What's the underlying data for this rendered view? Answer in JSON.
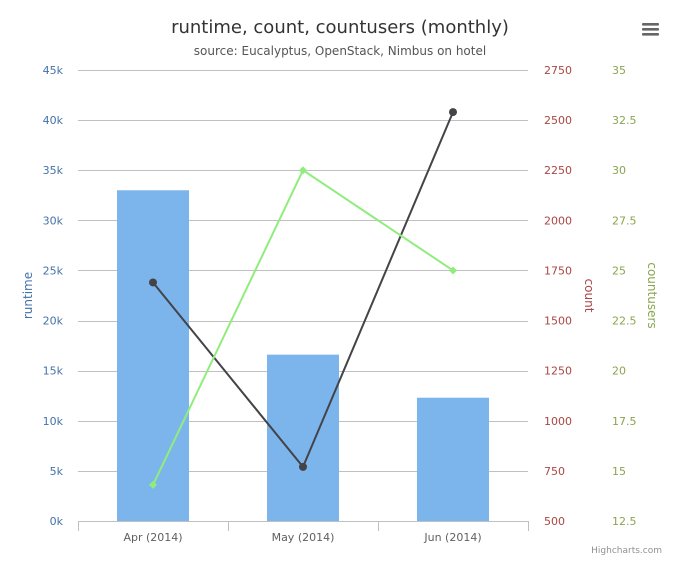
{
  "title": "runtime, count, countusers (monthly)",
  "subtitle": "source: Eucalyptus, OpenStack, Nimbus on hotel",
  "credits": "Highcharts.com",
  "menu_icon": "hamburger-menu-icon",
  "colors": {
    "runtime": "#7cb5ec",
    "runtime_axis": "#4572a7",
    "count": "#434348",
    "count_axis": "#89a54e",
    "count_axis_text": "#aa4643",
    "countusers": "#90ed7d",
    "countusers_axis": "#89a54e",
    "grid": "#c0c0c0",
    "title": "#333333",
    "subtitle": "#555555",
    "tick": "#606060"
  },
  "chart_data": {
    "type": "bar",
    "categories": [
      "Apr (2014)",
      "May (2014)",
      "Jun (2014)"
    ],
    "axes": [
      {
        "id": "runtime",
        "title": "runtime",
        "side": "left",
        "min": 0,
        "max": 45000,
        "ticks": [
          0,
          5000,
          10000,
          15000,
          20000,
          25000,
          30000,
          35000,
          40000,
          45000
        ],
        "tick_labels": [
          "0k",
          "5k",
          "10k",
          "15k",
          "20k",
          "25k",
          "30k",
          "35k",
          "40k",
          "45k"
        ]
      },
      {
        "id": "count",
        "title": "count",
        "side": "right",
        "min": 500,
        "max": 2750,
        "ticks": [
          500,
          750,
          1000,
          1250,
          1500,
          1750,
          2000,
          2250,
          2500,
          2750
        ],
        "tick_labels": [
          "500",
          "750",
          "1000",
          "1250",
          "1500",
          "1750",
          "2000",
          "2250",
          "2500",
          "2750"
        ]
      },
      {
        "id": "countusers",
        "title": "countusers",
        "side": "right",
        "min": 12.5,
        "max": 35,
        "ticks": [
          12.5,
          15,
          17.5,
          20,
          22.5,
          25,
          27.5,
          30,
          32.5,
          35
        ],
        "tick_labels": [
          "12.5",
          "15",
          "17.5",
          "20",
          "22.5",
          "25",
          "27.5",
          "30",
          "32.5",
          "35"
        ]
      }
    ],
    "series": [
      {
        "name": "runtime",
        "kind": "column",
        "axis": "runtime",
        "values": [
          33000,
          16600,
          12300
        ]
      },
      {
        "name": "count",
        "kind": "line",
        "axis": "count",
        "marker": "circle",
        "values": [
          1690,
          770,
          2540
        ]
      },
      {
        "name": "countusers",
        "kind": "line",
        "axis": "countusers",
        "marker": "diamond",
        "values": [
          14.3,
          30,
          25
        ]
      }
    ],
    "grid": true,
    "legend": "none"
  }
}
